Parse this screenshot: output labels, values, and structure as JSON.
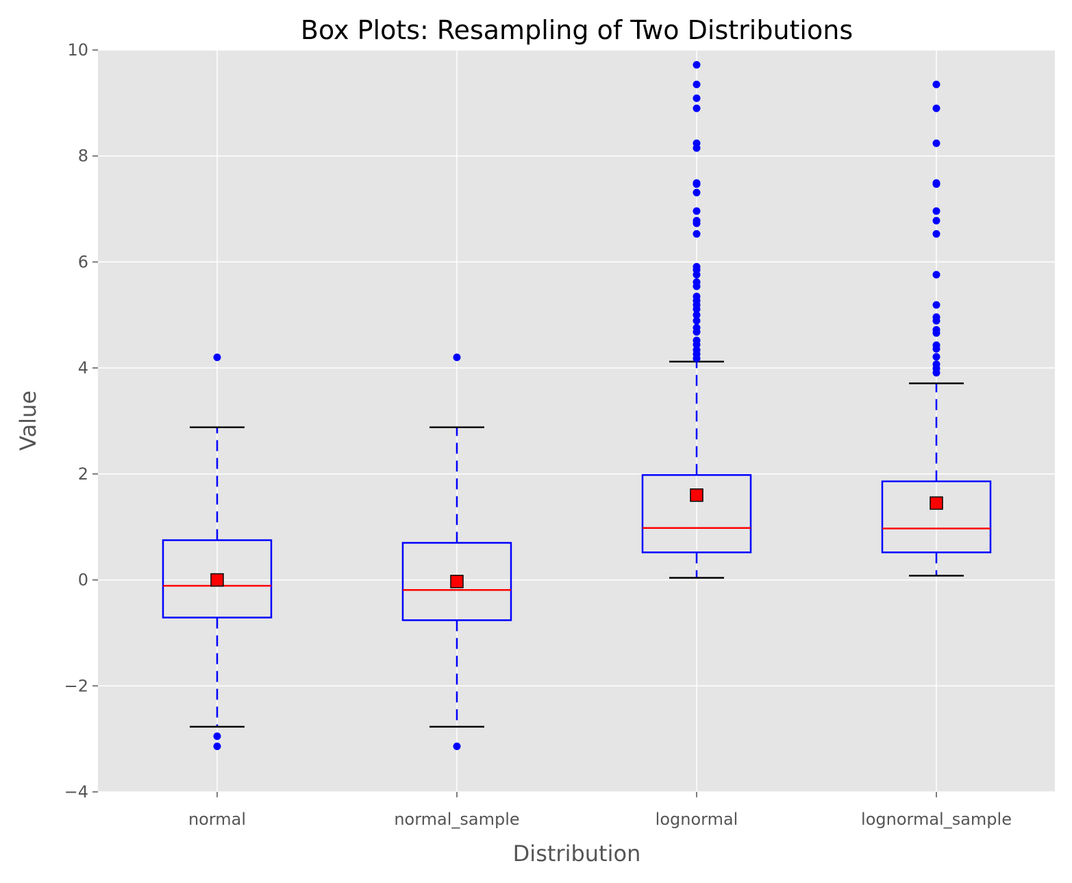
{
  "chart_data": {
    "type": "box",
    "title": "Box Plots: Resampling of Two Distributions",
    "xlabel": "Distribution",
    "ylabel": "Value",
    "ylim": [
      -4,
      10
    ],
    "yticks": [
      -4,
      -2,
      0,
      2,
      4,
      6,
      8,
      10
    ],
    "ytick_labels": [
      "−4",
      "−2",
      "0",
      "2",
      "4",
      "6",
      "8",
      "10"
    ],
    "grid": true,
    "categories": [
      "normal",
      "normal_sample",
      "lognormal",
      "lognormal_sample"
    ],
    "boxes": [
      {
        "name": "normal",
        "whisker_low": -2.77,
        "q1": -0.71,
        "median": -0.11,
        "q3": 0.75,
        "whisker_high": 2.88,
        "mean": 0.0,
        "outliers": [
          4.2,
          -2.95,
          -3.14
        ]
      },
      {
        "name": "normal_sample",
        "whisker_low": -2.77,
        "q1": -0.76,
        "median": -0.19,
        "q3": 0.7,
        "whisker_high": 2.88,
        "mean": -0.03,
        "outliers": [
          4.2,
          -3.14
        ]
      },
      {
        "name": "lognormal",
        "whisker_low": 0.04,
        "q1": 0.52,
        "median": 0.98,
        "q3": 1.98,
        "whisker_high": 4.12,
        "mean": 1.6,
        "outliers": [
          9.72,
          9.35,
          9.09,
          8.9,
          8.24,
          8.15,
          7.49,
          7.47,
          7.31,
          6.96,
          6.78,
          6.73,
          6.53,
          5.91,
          5.85,
          5.76,
          5.62,
          5.54,
          5.35,
          5.27,
          5.19,
          5.11,
          5.0,
          4.89,
          4.76,
          4.68,
          4.52,
          4.44,
          4.34,
          4.26,
          4.18
        ]
      },
      {
        "name": "lognormal_sample",
        "whisker_low": 0.08,
        "q1": 0.52,
        "median": 0.97,
        "q3": 1.86,
        "whisker_high": 3.71,
        "mean": 1.45,
        "outliers": [
          9.35,
          8.9,
          8.24,
          7.49,
          7.47,
          6.96,
          6.78,
          6.53,
          5.76,
          5.19,
          4.96,
          4.89,
          4.72,
          4.66,
          4.43,
          4.36,
          4.21,
          4.07,
          3.99,
          3.91
        ]
      }
    ],
    "colors": {
      "box": "#0000ff",
      "median": "#ff0000",
      "mean": "#ff0000",
      "whisker_cap": "#000000",
      "outlier": "#0000ff",
      "background": "#e5e5e5",
      "grid": "#ffffff"
    }
  }
}
